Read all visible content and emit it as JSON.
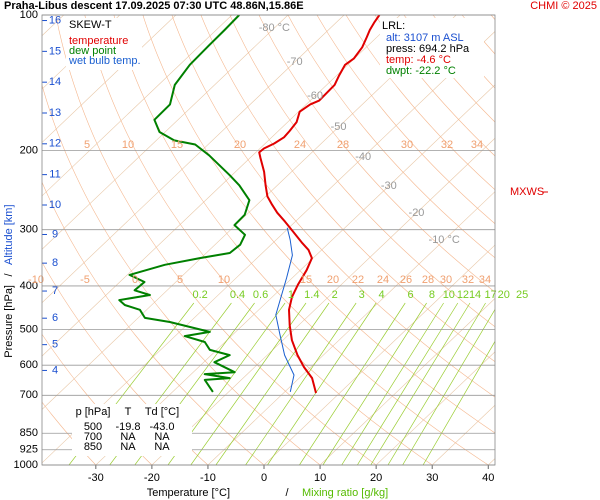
{
  "chart_data": {
    "type": "skewt",
    "title": "Praha-Libus   descent   17.09.2025 07:30 UTC   48.86N,15.86E",
    "credit": "CHMI © 2025",
    "x_label": "Temperature [°C]",
    "x_label_sep": "/",
    "x_label2": "Mixing ratio [g/kg]",
    "y_label": "Pressure [hPa]",
    "y_label_sep": "/",
    "y_label2": "Altitude [km]",
    "legend_title": "SKEW-T",
    "y_log": true,
    "ylim": [
      1000,
      100
    ],
    "yticks": [
      100,
      200,
      300,
      400,
      500,
      600,
      700,
      850,
      925,
      1000
    ],
    "xlim": [
      -39.6,
      41.2
    ],
    "xticks": [
      -30,
      -20,
      -10,
      0,
      10,
      20,
      30,
      40
    ],
    "y2ticks": [
      16,
      15,
      14,
      13,
      12,
      11,
      10,
      9,
      8,
      7,
      6,
      5,
      4
    ],
    "mixing_ratios": [
      0.2,
      0.4,
      0.6,
      1,
      1.4,
      2,
      3,
      4,
      6,
      8,
      10,
      12,
      14,
      17,
      20,
      25
    ],
    "isotherm_labels": [
      {
        "value": -80,
        "label": "-80 °C"
      },
      {
        "value": -70,
        "label": "-70"
      },
      {
        "value": -60,
        "label": "-60"
      },
      {
        "value": -50,
        "label": "-50"
      },
      {
        "value": -40,
        "label": "-40"
      },
      {
        "value": -30,
        "label": "-30"
      },
      {
        "value": -20,
        "label": "-20"
      },
      {
        "value": -10,
        "label": "-10 °C"
      }
    ],
    "adiabat_labels_upper": [
      5,
      10,
      15,
      20,
      24,
      28,
      30,
      32,
      34
    ],
    "adiabat_labels_lower": [
      -10,
      -5,
      0,
      5,
      10,
      15,
      20,
      22,
      24,
      26,
      28,
      30,
      32,
      34
    ],
    "mxws_label": "MXWS",
    "lrl": {
      "title": "LRL:",
      "lines": [
        "alt: 3107 m ASL",
        "press: 694.2 hPa",
        "temp: -4.6 °C",
        "dwpt: -22.2 °C"
      ]
    },
    "table": {
      "header": [
        "p [hPa]",
        "T",
        "Td [°C]"
      ],
      "rows": [
        [
          "500",
          "-19.8",
          "-43.0"
        ],
        [
          "700",
          "NA",
          "NA"
        ],
        [
          "850",
          "NA",
          "NA"
        ]
      ]
    },
    "series": [
      {
        "name": "temperature",
        "color": "#e00000",
        "pressure": [
          692,
          641,
          606,
          570,
          528,
          489,
          452,
          423,
          398,
          369,
          347,
          333,
          320,
          304,
          288,
          275,
          264,
          253,
          239,
          223,
          208,
          202,
          198,
          193,
          187,
          181,
          173,
          164,
          158,
          155,
          149,
          143,
          136,
          129,
          125,
          118,
          112,
          108,
          104,
          100
        ],
        "values": [
          -4.2,
          -7.7,
          -11.2,
          -14.6,
          -18.4,
          -21.6,
          -24.6,
          -26.5,
          -27.7,
          -28.9,
          -30.2,
          -32.3,
          -35.0,
          -38.3,
          -41.8,
          -44.9,
          -47.3,
          -49.7,
          -52.1,
          -54.9,
          -58.1,
          -59.4,
          -59.3,
          -58.4,
          -57.8,
          -58.0,
          -58.4,
          -59.8,
          -59.3,
          -58.4,
          -58.5,
          -58.6,
          -59.6,
          -60.5,
          -60.1,
          -60.7,
          -61.8,
          -62.6,
          -63.2,
          -63.7
        ]
      },
      {
        "name": "dew point",
        "color": "#008000",
        "pressure": [
          688,
          647,
          641,
          628,
          622,
          591,
          570,
          555,
          533,
          517,
          506,
          481,
          471,
          452,
          441,
          430,
          419,
          409,
          392,
          378,
          359,
          347,
          338,
          324,
          308,
          293,
          278,
          258,
          239,
          227,
          205,
          194,
          190,
          182,
          171,
          158,
          143,
          129,
          117,
          108,
          100
        ],
        "values": [
          -22.8,
          -26.5,
          -22.4,
          -27.6,
          -22.6,
          -28.1,
          -26.7,
          -31.2,
          -33.6,
          -38.3,
          -34.6,
          -43.6,
          -48.8,
          -51.2,
          -54.8,
          -56.7,
          -52.2,
          -55.8,
          -55.6,
          -59.6,
          -55.2,
          -50.2,
          -45.8,
          -45.5,
          -46.5,
          -50.2,
          -50.3,
          -52.2,
          -56.8,
          -60.4,
          -67.8,
          -72.3,
          -76.8,
          -81.0,
          -84.2,
          -84.3,
          -87.1,
          -88.2,
          -88.4,
          -88.5,
          -88.7
        ]
      },
      {
        "name": "wet bulb temp.",
        "color": "#1a5fd0",
        "pressure": [
          688,
          631,
          570,
          514,
          464,
          419,
          384,
          342,
          316,
          297
        ],
        "values": [
          -9.0,
          -11.5,
          -16.9,
          -21.5,
          -26.0,
          -28.7,
          -31.0,
          -34.2,
          -37.5,
          -40.3
        ]
      }
    ]
  }
}
